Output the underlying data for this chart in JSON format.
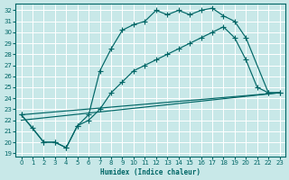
{
  "xlabel": "Humidex (Indice chaleur)",
  "bg_color": "#c8e8e8",
  "grid_color": "#d0e8e0",
  "line_color": "#006666",
  "xlim": [
    -0.5,
    23.5
  ],
  "ylim": [
    18.7,
    32.6
  ],
  "xticks": [
    0,
    1,
    2,
    3,
    4,
    5,
    6,
    7,
    8,
    9,
    10,
    11,
    12,
    13,
    14,
    15,
    16,
    17,
    18,
    19,
    20,
    21,
    22,
    23
  ],
  "yticks": [
    19,
    20,
    21,
    22,
    23,
    24,
    25,
    26,
    27,
    28,
    29,
    30,
    31,
    32
  ],
  "curves": [
    {
      "x": [
        0,
        1,
        2,
        3,
        4,
        5,
        6,
        7,
        8,
        9,
        10,
        11,
        12,
        13,
        14,
        15,
        16,
        17,
        18,
        19,
        20,
        22,
        23
      ],
      "y": [
        22.5,
        21.3,
        20.0,
        20.0,
        19.5,
        21.5,
        22.5,
        26.5,
        28.5,
        30.2,
        30.7,
        31.0,
        32.0,
        31.6,
        32.0,
        31.6,
        32.0,
        32.2,
        31.5,
        31.0,
        29.5,
        24.5,
        24.5
      ],
      "marker": true
    },
    {
      "x": [
        0,
        2,
        3,
        4,
        5,
        6,
        7,
        8,
        9,
        10,
        11,
        12,
        13,
        14,
        15,
        16,
        17,
        18,
        19,
        20,
        21,
        22,
        23
      ],
      "y": [
        22.5,
        20.0,
        20.0,
        19.5,
        21.5,
        22.0,
        23.0,
        24.5,
        25.5,
        26.5,
        27.0,
        27.5,
        28.0,
        28.5,
        29.0,
        29.5,
        30.0,
        30.5,
        29.5,
        27.5,
        25.0,
        24.5,
        24.5
      ],
      "marker": true
    },
    {
      "x": [
        0,
        23
      ],
      "y": [
        22.0,
        24.5
      ],
      "marker": false
    },
    {
      "x": [
        0,
        23
      ],
      "y": [
        22.5,
        24.5
      ],
      "marker": false
    }
  ]
}
